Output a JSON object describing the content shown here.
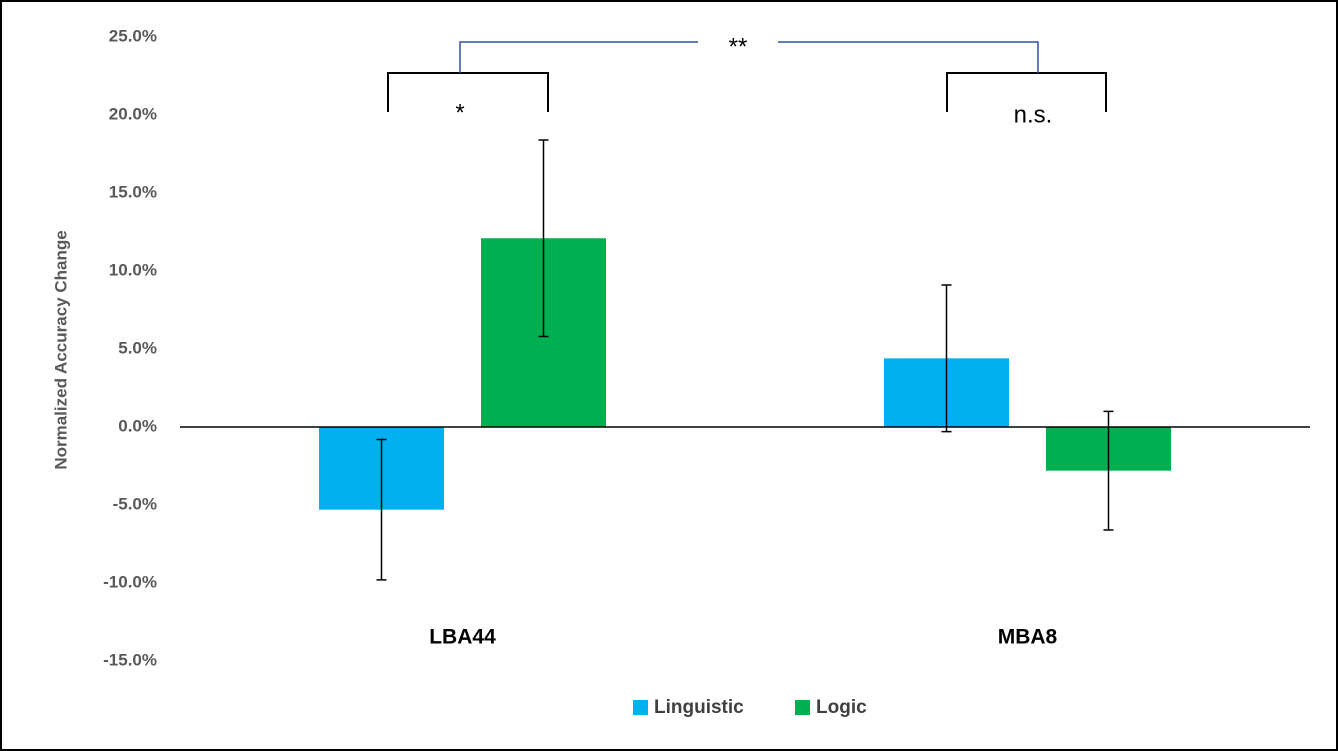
{
  "chart_data": {
    "type": "bar",
    "y_label": "Normalized Accuracy Change",
    "categories": [
      "LBA44",
      "MBA8"
    ],
    "series": [
      {
        "name": "Linguistic",
        "color": "#00b0f0",
        "values": [
          -5.3,
          4.4
        ],
        "errors": [
          4.5,
          4.7
        ]
      },
      {
        "name": "Logic",
        "color": "#00b050",
        "values": [
          12.1,
          -2.8
        ],
        "errors": [
          6.3,
          3.8
        ]
      }
    ],
    "ylim": [
      -15,
      25
    ],
    "yticks": [
      {
        "value": -15,
        "label": "-15.0%"
      },
      {
        "value": -10,
        "label": "-10.0%"
      },
      {
        "value": -5,
        "label": "-5.0%"
      },
      {
        "value": 0,
        "label": "0.0%"
      },
      {
        "value": 5,
        "label": "5.0%"
      },
      {
        "value": 10,
        "label": "10.0%"
      },
      {
        "value": 15,
        "label": "15.0%"
      },
      {
        "value": 20,
        "label": "20.0%"
      },
      {
        "value": 25,
        "label": "25.0%"
      }
    ],
    "annotations": [
      "*",
      "n.s.",
      "**"
    ],
    "legend": "bottom",
    "grid": false
  }
}
